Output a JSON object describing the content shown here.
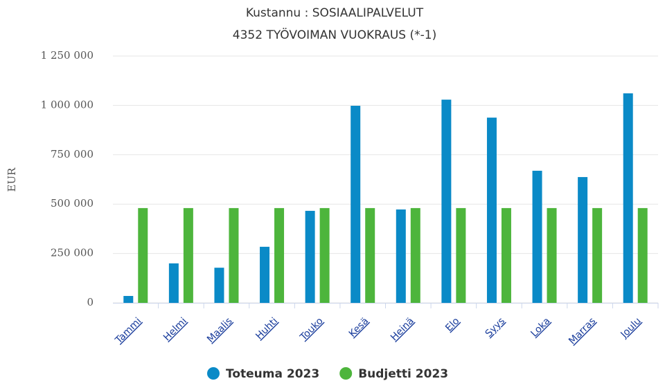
{
  "chart_data": {
    "type": "bar",
    "title": "Kustannu : SOSIAALIPALVELUT",
    "subtitle": "4352 TYÖVOIMAN VUOKRAUS (*-1)",
    "y_label": "EUR",
    "categories": [
      "Tammi",
      "Helmi",
      "Maalis",
      "Huhti",
      "Touko",
      "Kesä",
      "Heinä",
      "Elo",
      "Syys",
      "Loka",
      "Marras",
      "Joulu"
    ],
    "series": [
      {
        "name": "Toteuma 2023",
        "color": "#0a8ac7",
        "values": [
          35000,
          200000,
          178000,
          284000,
          466000,
          998000,
          473000,
          1029000,
          938000,
          669000,
          637000,
          1061000
        ]
      },
      {
        "name": "Budjetti 2023",
        "color": "#4db53c",
        "values": [
          480000,
          480000,
          480000,
          480000,
          480000,
          480000,
          480000,
          480000,
          480000,
          480000,
          480000,
          480000
        ]
      }
    ],
    "ylim": [
      0,
      1250000
    ],
    "yticks": [
      0,
      {
        "value": 250000,
        "label": "250 000"
      },
      {
        "value": 500000,
        "label": "500 000"
      },
      {
        "value": 750000,
        "label": "750 000"
      },
      {
        "value": 1000000,
        "label": "1 000 000"
      },
      {
        "value": 1250000,
        "label": "1 250 000"
      }
    ],
    "grid": true,
    "legend": "bottom"
  }
}
